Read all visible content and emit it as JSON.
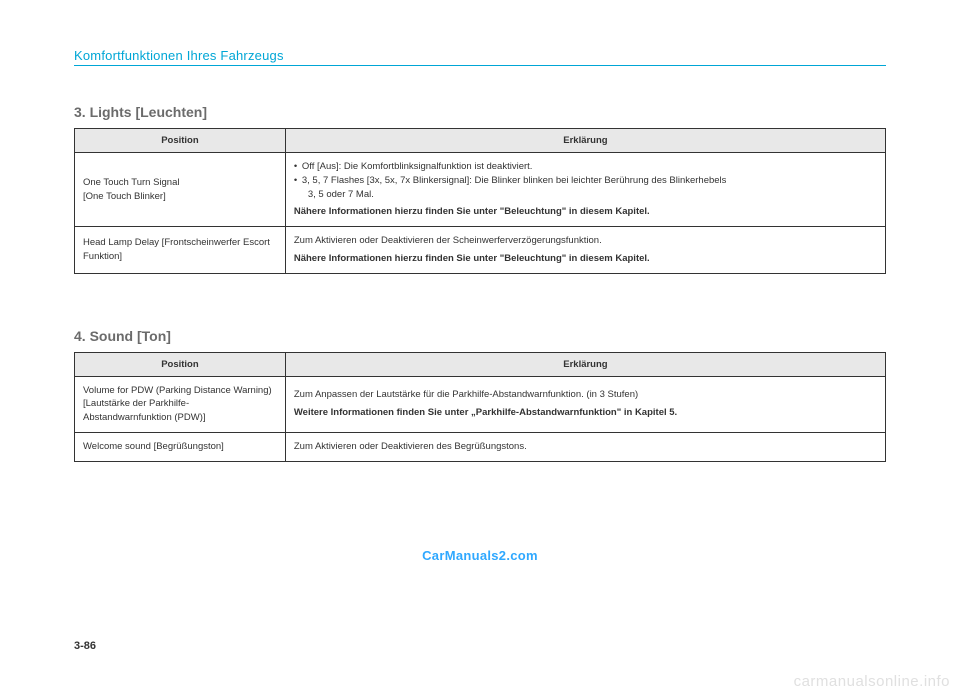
{
  "chapter_title": "Komfortfunktionen Ihres Fahrzeugs",
  "section3": {
    "title": "3. Lights [Leuchten]",
    "headers": {
      "position": "Position",
      "erkl": "Erklärung"
    },
    "rows": [
      {
        "pos": "One Touch Turn Signal\n[One Touch Blinker]",
        "bullet1": "Off [Aus]: Die Komfortblinksignalfunktion ist deaktiviert.",
        "bullet2": "3, 5, 7 Flashes [3x, 5x, 7x Blinkersignal]: Die Blinker blinken bei leichter Berührung des Blinkerhebels",
        "bullet2b": "3, 5 oder 7 Mal.",
        "note": "Nähere Informationen hierzu finden Sie unter \"Beleuchtung\" in diesem Kapitel."
      },
      {
        "pos": "Head Lamp Delay [Frontscheinwerfer Escort Funktion]",
        "text": "Zum Aktivieren oder Deaktivieren der Scheinwerferverzögerungsfunktion.",
        "note": "Nähere Informationen hierzu finden Sie unter \"Beleuchtung\" in diesem Kapitel."
      }
    ]
  },
  "section4": {
    "title": "4. Sound [Ton]",
    "headers": {
      "position": "Position",
      "erkl": "Erklärung"
    },
    "rows": [
      {
        "pos": "Volume for PDW (Parking Distance Warning) [Lautstärke der Parkhilfe-Abstandwarnfunktion (PDW)]",
        "text": "Zum Anpassen der Lautstärke für die Parkhilfe-Abstandwarnfunktion. (in 3 Stufen)",
        "note": "Weitere Informationen finden Sie unter „Parkhilfe-Abstandwarnfunktion\" in Kapitel 5."
      },
      {
        "pos": "Welcome sound [Begrüßungston]",
        "text": "Zum Aktivieren oder Deaktivieren des Begrüßungstons."
      }
    ]
  },
  "watermark_center": "CarManuals2.com",
  "page_num": "3-86",
  "watermark_corner": "carmanualsonline.info"
}
